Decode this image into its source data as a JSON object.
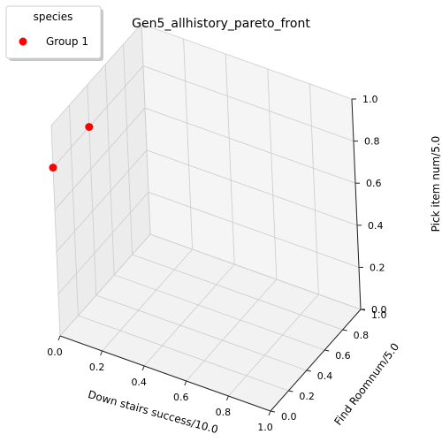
{
  "chart_data": {
    "type": "scatter3d",
    "title": "Gen5_allhistory_pareto_front",
    "xlabel": "Down stairs success/10.0",
    "ylabel": "Find Roomnum/5.0",
    "zlabel": "Pick item num/5.0",
    "xlim": [
      0,
      1
    ],
    "ylim": [
      0,
      1
    ],
    "zlim": [
      0,
      1
    ],
    "xticks": [
      "0.0",
      "0.2",
      "0.4",
      "0.6",
      "0.8",
      "1.0"
    ],
    "yticks": [
      "0.0",
      "0.2",
      "0.4",
      "0.6",
      "0.8",
      "1.0"
    ],
    "zticks": [
      "0.0",
      "0.2",
      "0.4",
      "0.6",
      "0.8",
      "1.0"
    ],
    "grid": true,
    "legend": {
      "title": "species",
      "placement": "top-left"
    },
    "series": [
      {
        "name": "Group 1",
        "color": "#ff0000",
        "points": [
          {
            "x": 0.0,
            "y": 0.0,
            "z": 0.8
          },
          {
            "x": 0.0,
            "y": 0.4,
            "z": 0.8
          }
        ]
      }
    ]
  }
}
